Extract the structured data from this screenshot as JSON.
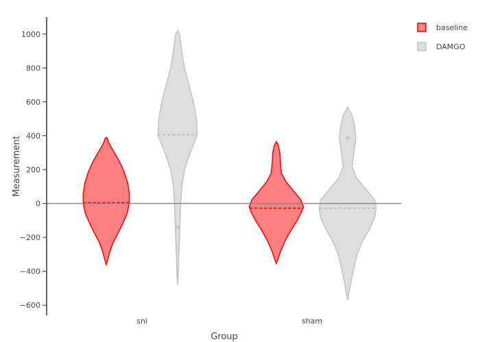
{
  "chart_data": {
    "type": "violin",
    "xlabel": "Group",
    "ylabel": "Measurement",
    "categories": [
      "sni",
      "sham"
    ],
    "ylim": [
      -660,
      1100
    ],
    "yticks": [
      -600,
      -400,
      -200,
      0,
      200,
      400,
      600,
      800,
      1000
    ],
    "zero_line": true,
    "grid": false,
    "legend": {
      "position": "top-right",
      "entries": [
        "baseline",
        "DAMGO"
      ]
    },
    "series": [
      {
        "name": "baseline",
        "color": "#ff0000",
        "fill": "#ff8080",
        "violins": [
          {
            "category": "sni",
            "median": 5,
            "outliers": [],
            "profile": [
              [
                -360,
                0
              ],
              [
                -330,
                0.05
              ],
              [
                -280,
                0.12
              ],
              [
                -230,
                0.22
              ],
              [
                -180,
                0.36
              ],
              [
                -120,
                0.52
              ],
              [
                -60,
                0.66
              ],
              [
                0,
                0.73
              ],
              [
                60,
                0.73
              ],
              [
                120,
                0.68
              ],
              [
                180,
                0.58
              ],
              [
                240,
                0.44
              ],
              [
                300,
                0.26
              ],
              [
                350,
                0.1
              ],
              [
                385,
                0.03
              ],
              [
                390,
                0
              ]
            ]
          },
          {
            "category": "sham",
            "median": -28,
            "outliers": [],
            "profile": [
              [
                -355,
                0
              ],
              [
                -330,
                0.05
              ],
              [
                -280,
                0.14
              ],
              [
                -220,
                0.28
              ],
              [
                -160,
                0.46
              ],
              [
                -100,
                0.66
              ],
              [
                -50,
                0.8
              ],
              [
                -20,
                0.86
              ],
              [
                20,
                0.78
              ],
              [
                80,
                0.52
              ],
              [
                130,
                0.3
              ],
              [
                180,
                0.16
              ],
              [
                240,
                0.13
              ],
              [
                300,
                0.11
              ],
              [
                345,
                0.06
              ],
              [
                365,
                0
              ]
            ]
          }
        ]
      },
      {
        "name": "DAMGO",
        "color": "#c2c2c2",
        "fill": "#dedede",
        "violins": [
          {
            "category": "sni",
            "median": 405,
            "outliers": [
              -140
            ],
            "profile": [
              [
                -480,
                0
              ],
              [
                -420,
                0.02
              ],
              [
                -300,
                0.04
              ],
              [
                -200,
                0.06
              ],
              [
                -100,
                0.08
              ],
              [
                0,
                0.1
              ],
              [
                100,
                0.13
              ],
              [
                200,
                0.22
              ],
              [
                300,
                0.4
              ],
              [
                400,
                0.62
              ],
              [
                500,
                0.6
              ],
              [
                600,
                0.5
              ],
              [
                700,
                0.36
              ],
              [
                800,
                0.22
              ],
              [
                900,
                0.13
              ],
              [
                1000,
                0.06
              ],
              [
                1020,
                0
              ]
            ]
          },
          {
            "category": "sham",
            "median": -28,
            "outliers": [
              388
            ],
            "profile": [
              [
                -570,
                0
              ],
              [
                -530,
                0.04
              ],
              [
                -450,
                0.12
              ],
              [
                -380,
                0.2
              ],
              [
                -300,
                0.3
              ],
              [
                -220,
                0.48
              ],
              [
                -150,
                0.7
              ],
              [
                -80,
                0.86
              ],
              [
                -30,
                0.9
              ],
              [
                20,
                0.86
              ],
              [
                80,
                0.6
              ],
              [
                150,
                0.28
              ],
              [
                220,
                0.14
              ],
              [
                300,
                0.2
              ],
              [
                380,
                0.26
              ],
              [
                460,
                0.22
              ],
              [
                520,
                0.14
              ],
              [
                570,
                0
              ]
            ]
          }
        ]
      }
    ]
  }
}
